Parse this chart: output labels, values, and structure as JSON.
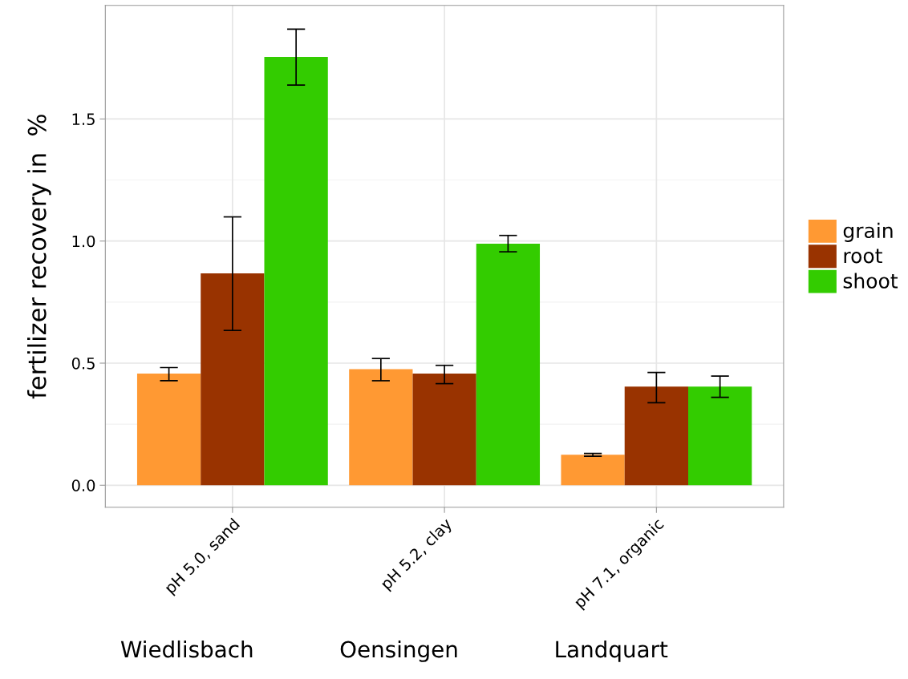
{
  "chart_data": {
    "type": "bar",
    "ylabel": "fertilizer recovery in  %",
    "categories": [
      "pH 5.0, sand",
      "pH 5.2, clay",
      "pH 7.1, organic"
    ],
    "series": [
      {
        "name": "grain",
        "color": "#ff9933",
        "values": [
          0.457,
          0.475,
          0.125
        ],
        "errors": [
          [
            0.428,
            0.482
          ],
          [
            0.428,
            0.519
          ],
          [
            0.119,
            0.13
          ]
        ]
      },
      {
        "name": "root",
        "color": "#993300",
        "values": [
          0.868,
          0.457,
          0.404
        ],
        "errors": [
          [
            0.634,
            1.099
          ],
          [
            0.416,
            0.491
          ],
          [
            0.338,
            0.462
          ]
        ]
      },
      {
        "name": "shoot",
        "color": "#33cc00",
        "values": [
          1.754,
          0.989,
          0.404
        ],
        "errors": [
          [
            1.639,
            1.868
          ],
          [
            0.956,
            1.023
          ],
          [
            0.36,
            0.447
          ]
        ]
      }
    ],
    "ylim": [
      -0.09,
      1.965
    ],
    "yticks": [
      {
        "value": 0,
        "label": "0.0"
      },
      {
        "value": 0.5,
        "label": "0.5"
      },
      {
        "value": 1,
        "label": "1.0"
      },
      {
        "value": 1.5,
        "label": "1.5"
      }
    ],
    "grid": true,
    "legend": "right",
    "annotations": [
      "Wiedlisbach",
      "Oensingen",
      "Landquart"
    ]
  }
}
